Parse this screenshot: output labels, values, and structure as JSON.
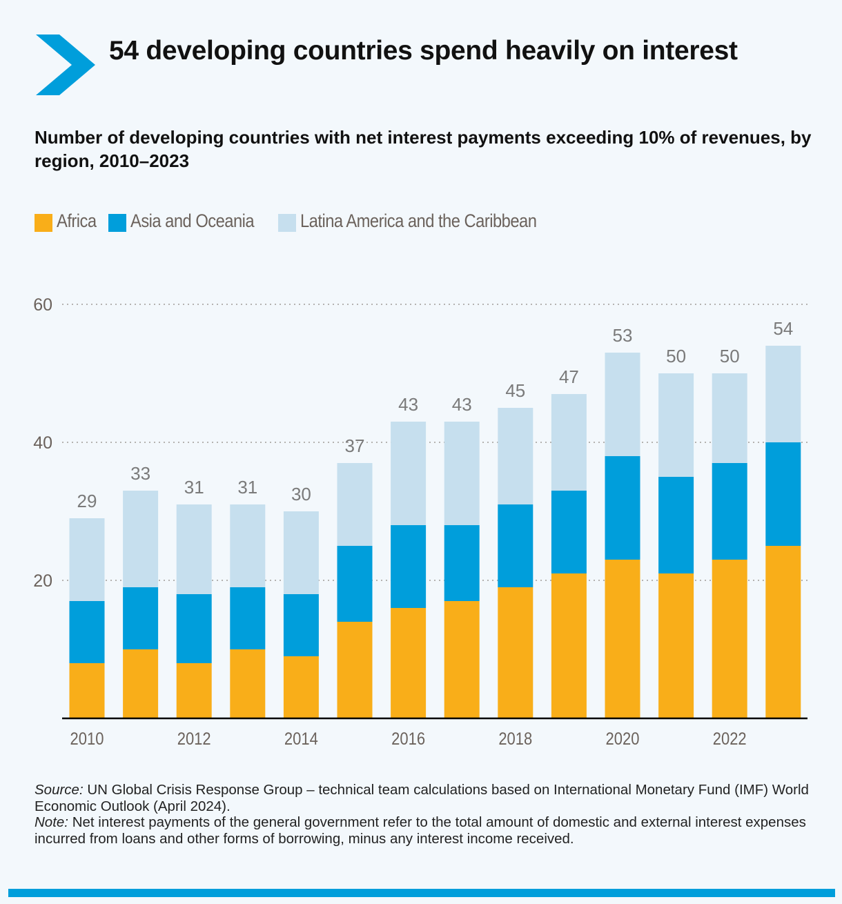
{
  "header": {
    "title": "54 developing countries spend heavily on interest",
    "subtitle": "Number of developing countries with net interest payments exceeding 10% of revenues, by region, 2010–2023",
    "icon": "chevron-right-icon",
    "accent_color": "#009edb"
  },
  "chart_data": {
    "type": "bar",
    "stacked": true,
    "title": "Number of developing countries with net interest payments exceeding 10% of revenues, by region, 2010–2023",
    "xlabel": "",
    "ylabel": "",
    "categories": [
      "2010",
      "2011",
      "2012",
      "2013",
      "2014",
      "2015",
      "2016",
      "2017",
      "2018",
      "2019",
      "2020",
      "2021",
      "2022",
      "2023"
    ],
    "x_tick_labels": [
      "2010",
      "",
      "2012",
      "",
      "2014",
      "",
      "2016",
      "",
      "2018",
      "",
      "2020",
      "",
      "2022",
      ""
    ],
    "series": [
      {
        "name": "Africa",
        "color": "#f9ae19",
        "values": [
          8,
          10,
          8,
          10,
          9,
          14,
          16,
          17,
          19,
          21,
          23,
          21,
          23,
          25
        ]
      },
      {
        "name": "Asia and Oceania",
        "color": "#009edb",
        "values": [
          9,
          9,
          10,
          9,
          9,
          11,
          12,
          11,
          12,
          12,
          15,
          14,
          14,
          15
        ]
      },
      {
        "name": "Latina America and the Caribbean",
        "color": "#c6dfee",
        "values": [
          12,
          14,
          13,
          12,
          12,
          12,
          15,
          15,
          14,
          14,
          15,
          15,
          13,
          14
        ]
      }
    ],
    "totals": [
      29,
      33,
      31,
      31,
      30,
      37,
      43,
      43,
      45,
      47,
      53,
      50,
      50,
      54
    ],
    "ylim": [
      0,
      60
    ],
    "yticks": [
      20,
      40,
      60
    ],
    "grid": true,
    "legend_position": "top-left"
  },
  "footer": {
    "source_label": "Source:",
    "source_text": " UN Global Crisis Response Group – technical team calculations based on International Monetary Fund (IMF) World Economic Outlook (April 2024).",
    "note_label": "Note:",
    "note_text": " Net interest payments of the general government refer to the total amount of domestic and external interest expenses incurred from loans and other forms of borrowing, minus any interest income received."
  }
}
